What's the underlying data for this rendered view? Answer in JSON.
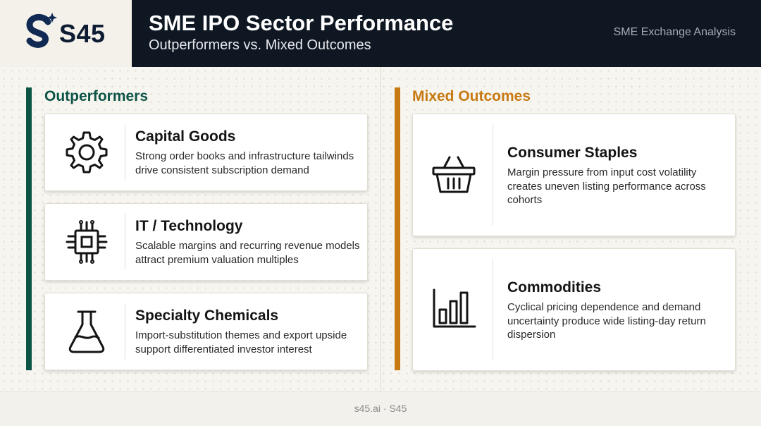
{
  "brand": {
    "name": "S45"
  },
  "header": {
    "title": "SME IPO Sector Performance",
    "subtitle": "Outperformers vs. Mixed Outcomes",
    "right_label": "SME Exchange Analysis"
  },
  "colors": {
    "dark": "#0e1722",
    "outperform_accent": "#0d5447",
    "mixed_accent": "#c77a14"
  },
  "outperformers": {
    "title": "Outperformers",
    "cards": [
      {
        "icon": "gear-icon",
        "title": "Capital Goods",
        "desc": "Strong order books and infrastructure tailwinds drive consistent subscription demand"
      },
      {
        "icon": "chip-icon",
        "title": "IT / Technology",
        "desc": "Scalable margins and recurring revenue models attract premium valuation multiples"
      },
      {
        "icon": "flask-icon",
        "title": "Specialty Chemicals",
        "desc": "Import-substitution themes and export upside support differentiated investor interest"
      }
    ]
  },
  "mixed": {
    "title": "Mixed Outcomes",
    "cards": [
      {
        "icon": "basket-icon",
        "title": "Consumer Staples",
        "desc": "Margin pressure from input cost volatility creates uneven listing performance across cohorts"
      },
      {
        "icon": "bar-chart-icon",
        "title": "Commodities",
        "desc": "Cyclical pricing dependence and demand uncertainty produce wide listing-day return dispersion"
      }
    ]
  },
  "footer": {
    "text": "s45.ai · S45"
  }
}
